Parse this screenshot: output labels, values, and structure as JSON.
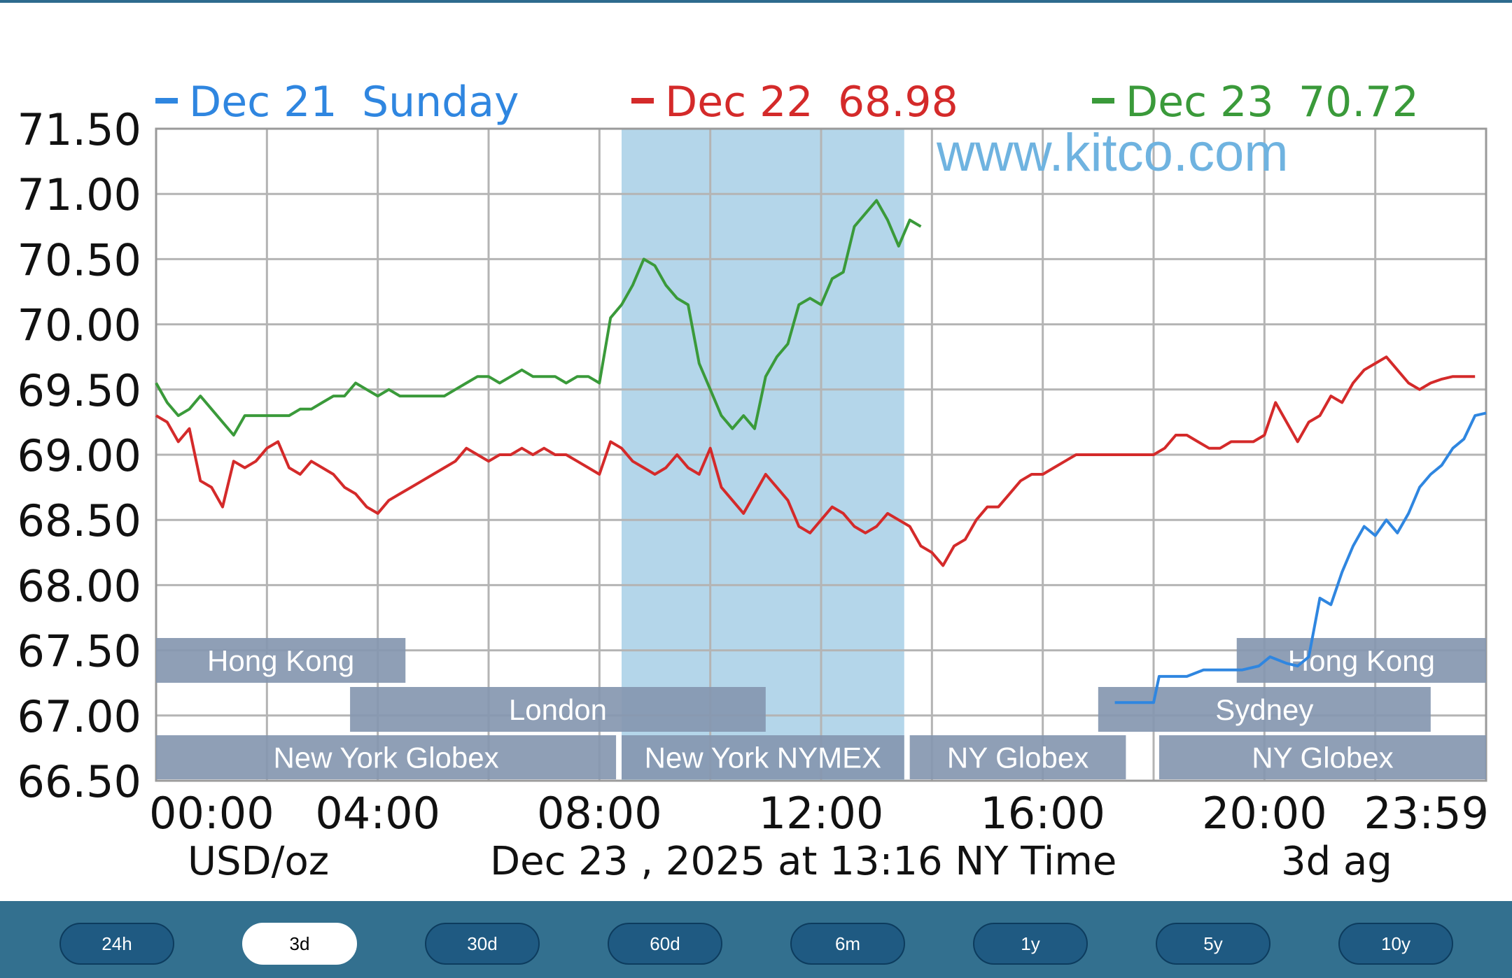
{
  "colors": {
    "top_bar": "#2e6b8e",
    "footer_bg": "#33708f",
    "button_bg": "#1f5a82",
    "button_border": "#0d3c5e",
    "button_active_bg": "#ffffff",
    "series_dec21": "#2f86e0",
    "series_dec22": "#d42a2a",
    "series_dec23": "#3a9a3a",
    "session_band": "#8597b0",
    "nymex_highlight": "#b4d6ea",
    "watermark": "#6fb3e0",
    "grid": "#b4b4b4"
  },
  "legend": [
    {
      "date": "Dec 21",
      "value": "Sunday",
      "color": "#2f86e0"
    },
    {
      "date": "Dec 22",
      "value": "68.98",
      "color": "#d42a2a"
    },
    {
      "date": "Dec 23",
      "value": "70.72",
      "color": "#3a9a3a"
    }
  ],
  "watermark": "www.kitco.com",
  "unit_label": "USD/oz",
  "timestamp": "Dec 23 , 2025 at 13:16 NY Time",
  "range_note": "3d ag",
  "sessions": [
    {
      "label": "Hong Kong",
      "row": 1,
      "start": 0,
      "end": 4.5
    },
    {
      "label": "London",
      "row": 2,
      "start": 3.5,
      "end": 11
    },
    {
      "label": "New York Globex",
      "row": 3,
      "start": 0,
      "end": 8.3
    },
    {
      "label": "New York NYMEX",
      "row": 3,
      "start": 8.4,
      "end": 13.5
    },
    {
      "label": "NY Globex",
      "row": 3,
      "start": 13.6,
      "end": 17.5
    },
    {
      "label": "Hong Kong",
      "row": 1,
      "start": 19.5,
      "end": 24
    },
    {
      "label": "Sydney",
      "row": 2,
      "start": 17,
      "end": 23
    },
    {
      "label": "NY Globex",
      "row": 3,
      "start": 18.1,
      "end": 24
    }
  ],
  "chart_data": {
    "type": "line",
    "x_unit": "hour of day (NY time)",
    "xlim": [
      0,
      24
    ],
    "ylim": [
      66.5,
      71.5
    ],
    "y_ticks": [
      "71.50",
      "71.00",
      "70.50",
      "70.00",
      "69.50",
      "69.00",
      "68.50",
      "68.00",
      "67.50",
      "67.00",
      "66.50"
    ],
    "x_ticks": [
      {
        "label": "00:00",
        "x": 0
      },
      {
        "label": "04:00",
        "x": 4
      },
      {
        "label": "08:00",
        "x": 8
      },
      {
        "label": "12:00",
        "x": 12
      },
      {
        "label": "16:00",
        "x": 16
      },
      {
        "label": "20:00",
        "x": 20
      },
      {
        "label": "23:59",
        "x": 24
      }
    ],
    "grid": true,
    "legend_position": "top",
    "highlight_range": [
      8.4,
      13.5
    ],
    "series": [
      {
        "name": "Dec 21",
        "color": "#2f86e0",
        "points": [
          [
            17.3,
            67.1
          ],
          [
            17.9,
            67.1
          ],
          [
            18.0,
            67.1
          ],
          [
            18.1,
            67.3
          ],
          [
            18.2,
            67.3
          ],
          [
            18.6,
            67.3
          ],
          [
            18.9,
            67.35
          ],
          [
            19.3,
            67.35
          ],
          [
            19.6,
            67.35
          ],
          [
            19.9,
            67.38
          ],
          [
            20.1,
            67.45
          ],
          [
            20.4,
            67.4
          ],
          [
            20.6,
            67.38
          ],
          [
            20.8,
            67.45
          ],
          [
            21.0,
            67.9
          ],
          [
            21.2,
            67.85
          ],
          [
            21.4,
            68.1
          ],
          [
            21.6,
            68.3
          ],
          [
            21.8,
            68.45
          ],
          [
            22.0,
            68.38
          ],
          [
            22.2,
            68.5
          ],
          [
            22.4,
            68.4
          ],
          [
            22.6,
            68.55
          ],
          [
            22.8,
            68.75
          ],
          [
            23.0,
            68.85
          ],
          [
            23.2,
            68.92
          ],
          [
            23.4,
            69.05
          ],
          [
            23.6,
            69.12
          ],
          [
            23.8,
            69.3
          ],
          [
            24.0,
            69.32
          ]
        ]
      },
      {
        "name": "Dec 22",
        "color": "#d42a2a",
        "points": [
          [
            0,
            69.3
          ],
          [
            0.2,
            69.25
          ],
          [
            0.4,
            69.1
          ],
          [
            0.6,
            69.2
          ],
          [
            0.8,
            68.8
          ],
          [
            1.0,
            68.75
          ],
          [
            1.2,
            68.6
          ],
          [
            1.4,
            68.95
          ],
          [
            1.6,
            68.9
          ],
          [
            1.8,
            68.95
          ],
          [
            2.0,
            69.05
          ],
          [
            2.2,
            69.1
          ],
          [
            2.4,
            68.9
          ],
          [
            2.6,
            68.85
          ],
          [
            2.8,
            68.95
          ],
          [
            3.0,
            68.9
          ],
          [
            3.2,
            68.85
          ],
          [
            3.4,
            68.75
          ],
          [
            3.6,
            68.7
          ],
          [
            3.8,
            68.6
          ],
          [
            4.0,
            68.55
          ],
          [
            4.2,
            68.65
          ],
          [
            4.4,
            68.7
          ],
          [
            4.6,
            68.75
          ],
          [
            4.8,
            68.8
          ],
          [
            5.0,
            68.85
          ],
          [
            5.2,
            68.9
          ],
          [
            5.4,
            68.95
          ],
          [
            5.6,
            69.05
          ],
          [
            5.8,
            69.0
          ],
          [
            6.0,
            68.95
          ],
          [
            6.2,
            69.0
          ],
          [
            6.4,
            69.0
          ],
          [
            6.6,
            69.05
          ],
          [
            6.8,
            69.0
          ],
          [
            7.0,
            69.05
          ],
          [
            7.2,
            69.0
          ],
          [
            7.4,
            69.0
          ],
          [
            7.6,
            68.95
          ],
          [
            7.8,
            68.9
          ],
          [
            8.0,
            68.85
          ],
          [
            8.2,
            69.1
          ],
          [
            8.4,
            69.05
          ],
          [
            8.6,
            68.95
          ],
          [
            8.8,
            68.9
          ],
          [
            9.0,
            68.85
          ],
          [
            9.2,
            68.9
          ],
          [
            9.4,
            69.0
          ],
          [
            9.6,
            68.9
          ],
          [
            9.8,
            68.85
          ],
          [
            10.0,
            69.05
          ],
          [
            10.2,
            68.75
          ],
          [
            10.4,
            68.65
          ],
          [
            10.6,
            68.55
          ],
          [
            10.8,
            68.7
          ],
          [
            11.0,
            68.85
          ],
          [
            11.2,
            68.75
          ],
          [
            11.4,
            68.65
          ],
          [
            11.6,
            68.45
          ],
          [
            11.8,
            68.4
          ],
          [
            12.0,
            68.5
          ],
          [
            12.2,
            68.6
          ],
          [
            12.4,
            68.55
          ],
          [
            12.6,
            68.45
          ],
          [
            12.8,
            68.4
          ],
          [
            13.0,
            68.45
          ],
          [
            13.2,
            68.55
          ],
          [
            13.4,
            68.5
          ],
          [
            13.6,
            68.45
          ],
          [
            13.8,
            68.3
          ],
          [
            14.0,
            68.25
          ],
          [
            14.2,
            68.15
          ],
          [
            14.4,
            68.3
          ],
          [
            14.6,
            68.35
          ],
          [
            14.8,
            68.5
          ],
          [
            15.0,
            68.6
          ],
          [
            15.2,
            68.6
          ],
          [
            15.4,
            68.7
          ],
          [
            15.6,
            68.8
          ],
          [
            15.8,
            68.85
          ],
          [
            16.0,
            68.85
          ],
          [
            16.2,
            68.9
          ],
          [
            16.4,
            68.95
          ],
          [
            16.6,
            69.0
          ],
          [
            16.8,
            69.0
          ],
          [
            17.0,
            69.0
          ],
          [
            17.2,
            69.0
          ],
          [
            17.4,
            69.0
          ],
          [
            17.6,
            69.0
          ],
          [
            17.8,
            69.0
          ],
          [
            18.0,
            69.0
          ],
          [
            18.2,
            69.05
          ],
          [
            18.4,
            69.15
          ],
          [
            18.6,
            69.15
          ],
          [
            18.8,
            69.1
          ],
          [
            19.0,
            69.05
          ],
          [
            19.2,
            69.05
          ],
          [
            19.4,
            69.1
          ],
          [
            19.6,
            69.1
          ],
          [
            19.8,
            69.1
          ],
          [
            20.0,
            69.15
          ],
          [
            20.2,
            69.4
          ],
          [
            20.4,
            69.25
          ],
          [
            20.6,
            69.1
          ],
          [
            20.8,
            69.25
          ],
          [
            21.0,
            69.3
          ],
          [
            21.2,
            69.45
          ],
          [
            21.4,
            69.4
          ],
          [
            21.6,
            69.55
          ],
          [
            21.8,
            69.65
          ],
          [
            22.0,
            69.7
          ],
          [
            22.2,
            69.75
          ],
          [
            22.4,
            69.65
          ],
          [
            22.6,
            69.55
          ],
          [
            22.8,
            69.5
          ],
          [
            23.0,
            69.55
          ],
          [
            23.2,
            69.58
          ],
          [
            23.4,
            69.6
          ],
          [
            23.6,
            69.6
          ],
          [
            23.8,
            69.6
          ]
        ]
      },
      {
        "name": "Dec 23",
        "color": "#3a9a3a",
        "points": [
          [
            0,
            69.55
          ],
          [
            0.2,
            69.4
          ],
          [
            0.4,
            69.3
          ],
          [
            0.6,
            69.35
          ],
          [
            0.8,
            69.45
          ],
          [
            1.0,
            69.35
          ],
          [
            1.2,
            69.25
          ],
          [
            1.4,
            69.15
          ],
          [
            1.6,
            69.3
          ],
          [
            1.8,
            69.3
          ],
          [
            2.0,
            69.3
          ],
          [
            2.2,
            69.3
          ],
          [
            2.4,
            69.3
          ],
          [
            2.6,
            69.35
          ],
          [
            2.8,
            69.35
          ],
          [
            3.0,
            69.4
          ],
          [
            3.2,
            69.45
          ],
          [
            3.4,
            69.45
          ],
          [
            3.6,
            69.55
          ],
          [
            3.8,
            69.5
          ],
          [
            4.0,
            69.45
          ],
          [
            4.2,
            69.5
          ],
          [
            4.4,
            69.45
          ],
          [
            4.6,
            69.45
          ],
          [
            4.8,
            69.45
          ],
          [
            5.0,
            69.45
          ],
          [
            5.2,
            69.45
          ],
          [
            5.4,
            69.5
          ],
          [
            5.6,
            69.55
          ],
          [
            5.8,
            69.6
          ],
          [
            6.0,
            69.6
          ],
          [
            6.2,
            69.55
          ],
          [
            6.4,
            69.6
          ],
          [
            6.6,
            69.65
          ],
          [
            6.8,
            69.6
          ],
          [
            7.0,
            69.6
          ],
          [
            7.2,
            69.6
          ],
          [
            7.4,
            69.55
          ],
          [
            7.6,
            69.6
          ],
          [
            7.8,
            69.6
          ],
          [
            8.0,
            69.55
          ],
          [
            8.2,
            70.05
          ],
          [
            8.4,
            70.15
          ],
          [
            8.6,
            70.3
          ],
          [
            8.8,
            70.5
          ],
          [
            9.0,
            70.45
          ],
          [
            9.2,
            70.3
          ],
          [
            9.4,
            70.2
          ],
          [
            9.6,
            70.15
          ],
          [
            9.8,
            69.7
          ],
          [
            10.0,
            69.5
          ],
          [
            10.2,
            69.3
          ],
          [
            10.4,
            69.2
          ],
          [
            10.6,
            69.3
          ],
          [
            10.8,
            69.2
          ],
          [
            11.0,
            69.6
          ],
          [
            11.2,
            69.75
          ],
          [
            11.4,
            69.85
          ],
          [
            11.6,
            70.15
          ],
          [
            11.8,
            70.2
          ],
          [
            12.0,
            70.15
          ],
          [
            12.2,
            70.35
          ],
          [
            12.4,
            70.4
          ],
          [
            12.6,
            70.75
          ],
          [
            12.8,
            70.85
          ],
          [
            13.0,
            70.95
          ],
          [
            13.2,
            70.8
          ],
          [
            13.4,
            70.6
          ],
          [
            13.6,
            70.8
          ],
          [
            13.8,
            70.75
          ]
        ]
      }
    ]
  },
  "range_buttons": [
    {
      "label": "24h",
      "active": false
    },
    {
      "label": "3d",
      "active": true
    },
    {
      "label": "30d",
      "active": false
    },
    {
      "label": "60d",
      "active": false
    },
    {
      "label": "6m",
      "active": false
    },
    {
      "label": "1y",
      "active": false
    },
    {
      "label": "5y",
      "active": false
    },
    {
      "label": "10y",
      "active": false
    }
  ]
}
